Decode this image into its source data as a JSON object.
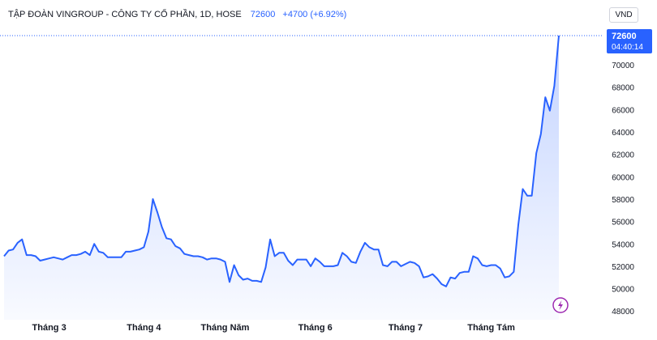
{
  "header": {
    "symbol": "TẬP ĐOÀN VINGROUP - CÔNG TY CỔ PHẦN, 1D, HOSE",
    "price": "72600",
    "change": "+4700 (+6.92%)"
  },
  "currency_button": "VND",
  "last_price_label": {
    "price": "72600",
    "time": "04:40:14"
  },
  "colors": {
    "line": "#2962ff",
    "area": "#dbe4ff",
    "last_label_bg": "#2962ff",
    "grid_dotted": "#2962ff"
  },
  "icons": {
    "indicator": "lightning-bolt-icon"
  },
  "chart_data": {
    "type": "area",
    "title": "",
    "xlabel": "",
    "ylabel": "",
    "ylim": [
      47800,
      72600
    ],
    "y_ticks": [
      48000,
      50000,
      52000,
      54000,
      56000,
      58000,
      60000,
      62000,
      64000,
      66000,
      68000,
      70000
    ],
    "x_tick_labels": [
      {
        "label": "Tháng 3",
        "index": 10
      },
      {
        "label": "Tháng 4",
        "index": 31
      },
      {
        "label": "Tháng Năm",
        "index": 49
      },
      {
        "label": "Tháng 6",
        "index": 69
      },
      {
        "label": "Tháng 7",
        "index": 89
      },
      {
        "label": "Tháng Tám",
        "index": 108
      }
    ],
    "series": [
      {
        "values": [
          52900,
          53400,
          53500,
          54100,
          54400,
          53000,
          53000,
          52900,
          52500,
          52600,
          52700,
          52800,
          52700,
          52600,
          52800,
          53000,
          53000,
          53100,
          53300,
          53000,
          54000,
          53300,
          53200,
          52800,
          52800,
          52800,
          52800,
          53300,
          53300,
          53400,
          53500,
          53700,
          55100,
          58000,
          56800,
          55500,
          54500,
          54400,
          53800,
          53600,
          53100,
          53000,
          52900,
          52900,
          52800,
          52600,
          52700,
          52700,
          52600,
          52400,
          50600,
          52100,
          51200,
          50800,
          50900,
          50700,
          50700,
          50600,
          51900,
          54400,
          52900,
          53200,
          53200,
          52500,
          52100,
          52600,
          52600,
          52600,
          52000,
          52700,
          52400,
          52000,
          52000,
          52000,
          52100,
          53200,
          52900,
          52400,
          52300,
          53300,
          54100,
          53700,
          53500,
          53500,
          52100,
          52000,
          52400,
          52400,
          52000,
          52200,
          52400,
          52300,
          52000,
          51000,
          51100,
          51300,
          50900,
          50400,
          50200,
          51000,
          50900,
          51400,
          51500,
          51500,
          52900,
          52700,
          52100,
          52000,
          52100,
          52100,
          51800,
          51000,
          51100,
          51500,
          55700,
          58900,
          58300,
          58300,
          62100,
          63800,
          67100,
          65900,
          68100,
          72600
        ]
      }
    ]
  }
}
